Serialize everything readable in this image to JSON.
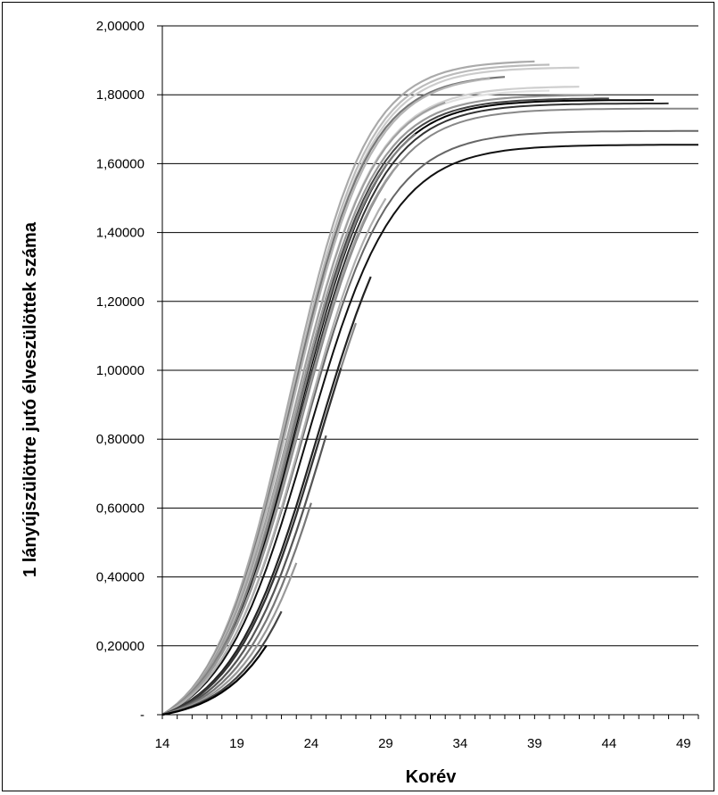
{
  "chart_data": {
    "type": "line",
    "title": "",
    "xlabel": "Korév",
    "ylabel": "1 lányújszülöttre jutó élveszülöttek száma",
    "xlim": [
      14,
      50
    ],
    "ylim": [
      0,
      2.0
    ],
    "x_ticks": [
      14,
      19,
      24,
      29,
      34,
      39,
      44,
      49
    ],
    "x_tick_labels": [
      "14",
      "19",
      "24",
      "29",
      "34",
      "39",
      "44",
      "49"
    ],
    "y_ticks": [
      0,
      0.2,
      0.4,
      0.6,
      0.8,
      1.0,
      1.2,
      1.4,
      1.6,
      1.8,
      2.0
    ],
    "y_tick_labels": [
      "-",
      "0,20000",
      "0,40000",
      "0,60000",
      "0,80000",
      "1,00000",
      "1,20000",
      "1,40000",
      "1,60000",
      "1,80000",
      "2,00000"
    ],
    "grid": "horizontal",
    "legend": "none",
    "series": [
      {
        "color": "#111111",
        "end": 50,
        "final": 1.655,
        "mid": 23.7,
        "k": 0.345
      },
      {
        "color": "#666666",
        "end": 50,
        "final": 1.695,
        "mid": 23.5,
        "k": 0.35
      },
      {
        "color": "#888888",
        "end": 50,
        "final": 1.76,
        "mid": 23.3,
        "k": 0.355
      },
      {
        "color": "#333333",
        "end": 48,
        "final": 1.775,
        "mid": 23.2,
        "k": 0.36
      },
      {
        "color": "#000000",
        "end": 47,
        "final": 1.785,
        "mid": 23.1,
        "k": 0.365
      },
      {
        "color": "#444444",
        "end": 44,
        "final": 1.79,
        "mid": 23.0,
        "k": 0.37
      },
      {
        "color": "#999999",
        "end": 43,
        "final": 1.8,
        "mid": 22.9,
        "k": 0.37
      },
      {
        "color": "#cfcfcf",
        "end": 42,
        "final": 1.825,
        "mid": 22.8,
        "k": 0.37
      },
      {
        "color": "#e0e0e0",
        "end": 40,
        "final": 1.815,
        "mid": 22.8,
        "k": 0.375
      },
      {
        "color": "#cccccc",
        "end": 42,
        "final": 1.88,
        "mid": 22.7,
        "k": 0.38
      },
      {
        "color": "#bbbbbb",
        "end": 40,
        "final": 1.89,
        "mid": 22.6,
        "k": 0.38
      },
      {
        "color": "#aaaaaa",
        "end": 39,
        "final": 1.9,
        "mid": 22.5,
        "k": 0.385
      },
      {
        "color": "#777777",
        "end": 37,
        "final": 1.86,
        "mid": 22.6,
        "k": 0.38
      },
      {
        "color": "#b5b5b5",
        "end": 36,
        "final": 1.86,
        "mid": 22.7,
        "k": 0.375
      },
      {
        "color": "#a0a0a0",
        "end": 33,
        "final": 1.82,
        "mid": 22.8,
        "k": 0.37
      },
      {
        "color": "#808080",
        "end": 31,
        "final": 1.78,
        "mid": 23.0,
        "k": 0.365
      },
      {
        "color": "#9a9a9a",
        "end": 30,
        "final": 1.75,
        "mid": 23.2,
        "k": 0.36
      },
      {
        "color": "#b0b0b0",
        "end": 29,
        "final": 1.72,
        "mid": 23.5,
        "k": 0.355
      },
      {
        "color": "#222222",
        "end": 28,
        "final": 1.66,
        "mid": 24.4,
        "k": 0.34
      },
      {
        "color": "#888888",
        "end": 27,
        "final": 1.66,
        "mid": 24.6,
        "k": 0.34
      },
      {
        "color": "#333333",
        "end": 26,
        "final": 1.66,
        "mid": 24.6,
        "k": 0.34
      },
      {
        "color": "#555555",
        "end": 25,
        "final": 1.66,
        "mid": 25.0,
        "k": 0.34
      },
      {
        "color": "#777777",
        "end": 24,
        "final": 1.66,
        "mid": 25.4,
        "k": 0.34
      },
      {
        "color": "#999999",
        "end": 23,
        "final": 1.66,
        "mid": 25.8,
        "k": 0.34
      },
      {
        "color": "#444444",
        "end": 22,
        "final": 1.66,
        "mid": 26.2,
        "k": 0.34
      },
      {
        "color": "#000000",
        "end": 21,
        "final": 1.66,
        "mid": 26.5,
        "k": 0.34
      }
    ]
  }
}
